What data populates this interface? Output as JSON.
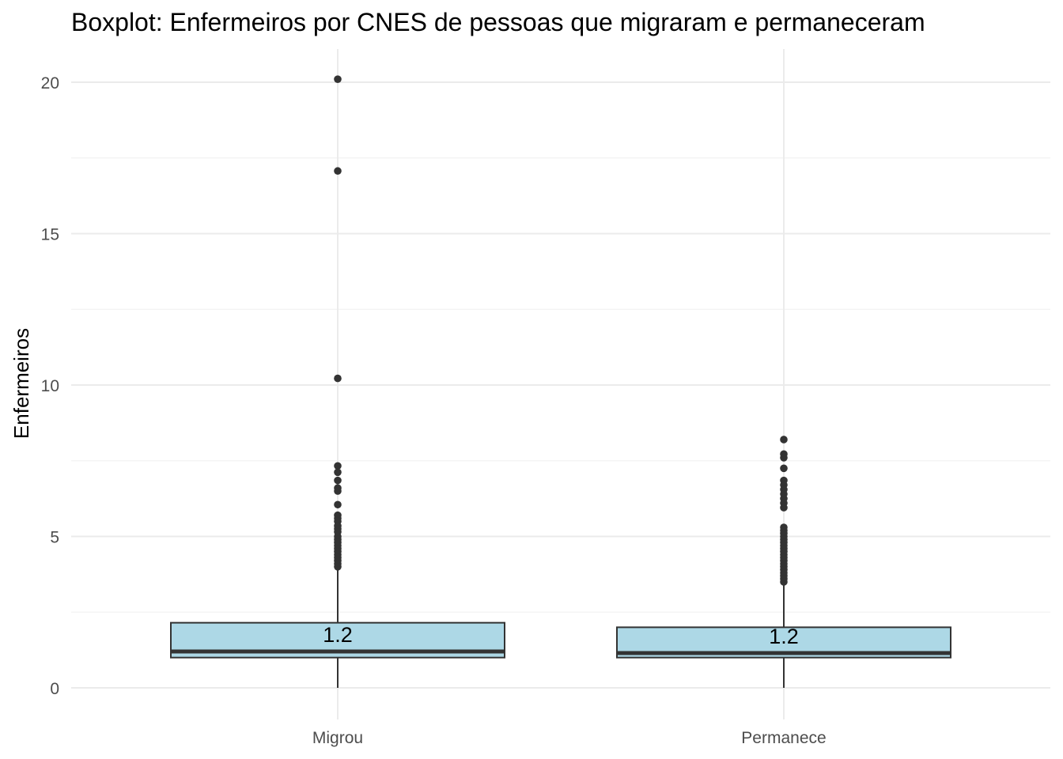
{
  "chart_data": {
    "type": "boxplot",
    "title": "Boxplot: Enfermeiros por CNES de pessoas que migraram e permaneceram",
    "xlabel": "",
    "ylabel": "Enfermeiros",
    "ylim": [
      -1.0,
      21.1
    ],
    "yticks": [
      0,
      5,
      10,
      15,
      20
    ],
    "categories": [
      "Migrou",
      "Permanece"
    ],
    "grid": true,
    "colors": {
      "fill": "#add8e6",
      "stroke": "#333333",
      "grid": "#ebebeb"
    },
    "boxes": [
      {
        "category": "Migrou",
        "min": 0.0,
        "q1": 1.0,
        "median": 1.2,
        "q3": 2.15,
        "whisker_high": 3.9,
        "median_label": "1.2",
        "outliers": [
          20.1,
          17.07,
          10.22,
          7.33,
          7.12,
          6.85,
          6.6,
          6.5,
          6.05,
          5.7,
          5.6,
          5.5,
          5.35,
          5.25,
          5.15,
          5.0,
          4.9,
          4.8,
          4.7,
          4.6,
          4.5,
          4.4,
          4.3,
          4.2,
          4.1,
          4.0
        ]
      },
      {
        "category": "Permanece",
        "min": 0.0,
        "q1": 1.0,
        "median": 1.15,
        "q3": 2.0,
        "whisker_high": 3.4,
        "median_label": "1.2",
        "outliers": [
          8.2,
          7.72,
          7.6,
          7.25,
          6.85,
          6.7,
          6.55,
          6.4,
          6.25,
          6.1,
          5.95,
          5.3,
          5.2,
          5.1,
          5.0,
          4.9,
          4.8,
          4.7,
          4.6,
          4.5,
          4.4,
          4.3,
          4.2,
          4.1,
          4.0,
          3.9,
          3.8,
          3.7,
          3.6,
          3.5
        ]
      }
    ]
  }
}
